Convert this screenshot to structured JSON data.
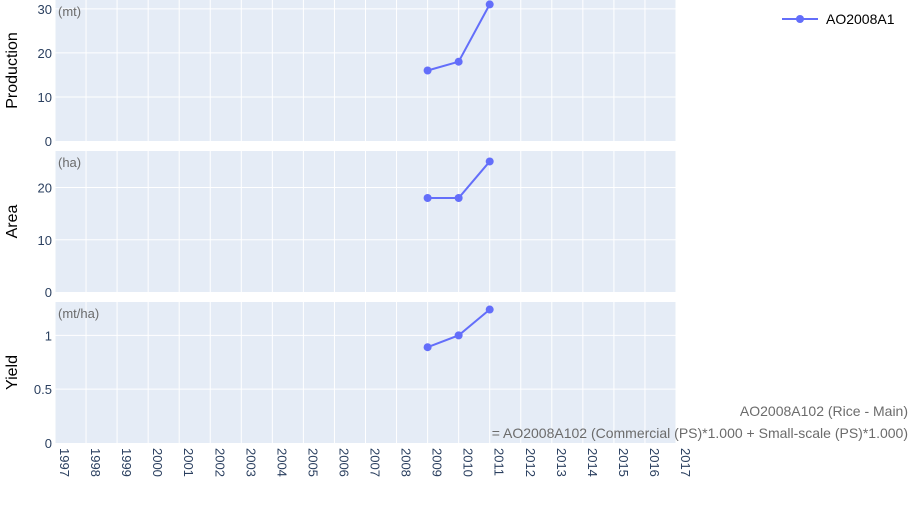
{
  "chart_data": {
    "type": "line",
    "layout": "three vertically stacked panels sharing the x axis",
    "x_ticks": [
      "1997",
      "1998",
      "1999",
      "2000",
      "2001",
      "2002",
      "2003",
      "2004",
      "2005",
      "2006",
      "2007",
      "2008",
      "2009",
      "2010",
      "2011",
      "2012",
      "2013",
      "2014",
      "2015",
      "2016",
      "2017"
    ],
    "xlim": [
      1997,
      2017
    ],
    "series": [
      {
        "name": "AO2008A1",
        "color": "#636efa",
        "x": [
          2009,
          2010,
          2011
        ]
      }
    ],
    "panels": [
      {
        "ylabel": "Production",
        "unit": "(mt)",
        "ylim": [
          0,
          32
        ],
        "yticks": [
          0,
          10,
          20,
          30
        ],
        "ytick_labels": [
          "0",
          "10",
          "20",
          "30"
        ],
        "values": [
          16,
          18,
          31
        ]
      },
      {
        "ylabel": "Area",
        "unit": "(ha)",
        "ylim": [
          0,
          27
        ],
        "yticks": [
          0,
          10,
          20
        ],
        "ytick_labels": [
          "0",
          "10",
          "20"
        ],
        "values": [
          18,
          18,
          25
        ]
      },
      {
        "ylabel": "Yield",
        "unit": "(mt/ha)",
        "ylim": [
          0,
          1.31
        ],
        "yticks": [
          0,
          0.5,
          1
        ],
        "ytick_labels": [
          "0",
          "0.5",
          "1"
        ],
        "values": [
          0.89,
          1.0,
          1.24
        ]
      }
    ],
    "legend": {
      "position": "top-right",
      "entries": [
        "AO2008A1"
      ]
    },
    "grid": true,
    "panel_background": "#e5ecf6",
    "annotations": [
      "AO2008A102 (Rice - Main)",
      "= AO2008A102 (Commercial (PS)*1.000 + Small-scale (PS)*1.000)"
    ]
  }
}
